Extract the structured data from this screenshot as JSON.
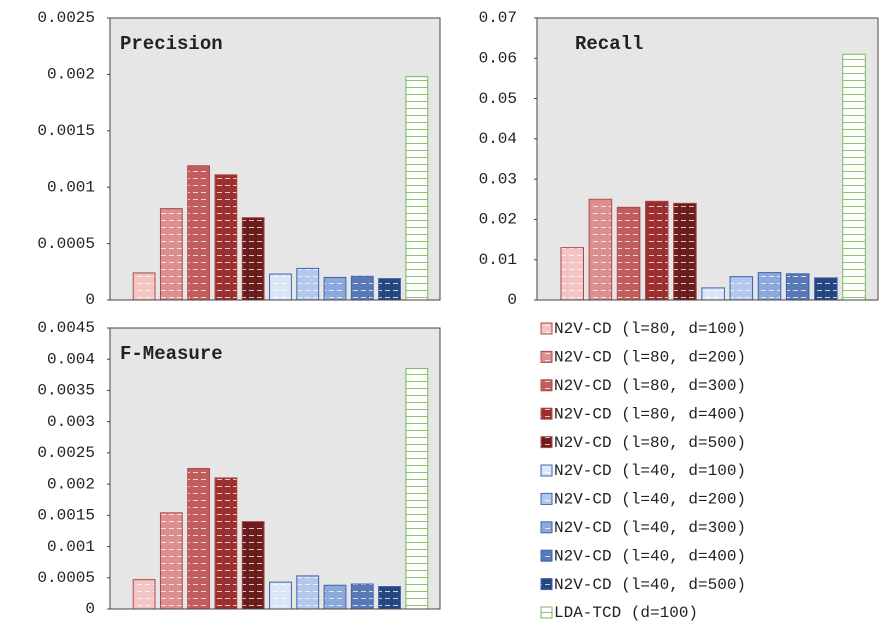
{
  "chart_data": [
    {
      "type": "bar",
      "title": "Precision",
      "values": [
        0.00024,
        0.00081,
        0.00119,
        0.00111,
        0.00073,
        0.00023,
        0.00028,
        0.0002,
        0.00021,
        0.00019,
        0.00198
      ],
      "ylim": [
        0,
        0.0025
      ],
      "yticks": [
        0,
        0.0005,
        0.001,
        0.0015,
        0.002,
        0.0025
      ]
    },
    {
      "type": "bar",
      "title": "Recall",
      "values": [
        0.013,
        0.025,
        0.023,
        0.0245,
        0.024,
        0.003,
        0.0058,
        0.0068,
        0.0065,
        0.0055,
        0.061
      ],
      "ylim": [
        0,
        0.07
      ],
      "yticks": [
        0,
        0.01,
        0.02,
        0.03,
        0.04,
        0.05,
        0.06,
        0.07
      ]
    },
    {
      "type": "bar",
      "title": "F-Measure",
      "values": [
        0.00047,
        0.00154,
        0.00225,
        0.0021,
        0.0014,
        0.00043,
        0.00053,
        0.00038,
        0.0004,
        0.00036,
        0.00385
      ],
      "ylim": [
        0,
        0.0045
      ],
      "yticks": [
        0,
        0.0005,
        0.001,
        0.0015,
        0.002,
        0.0025,
        0.003,
        0.0035,
        0.004,
        0.0045
      ]
    }
  ],
  "legend": [
    {
      "name": "N2V-CD (l=80, d=100)",
      "color": "#f2c4c4"
    },
    {
      "name": "N2V-CD (l=80, d=200)",
      "color": "#dc8f8f"
    },
    {
      "name": "N2V-CD (l=80, d=300)",
      "color": "#c25d5d"
    },
    {
      "name": "N2V-CD (l=80, d=400)",
      "color": "#9b2f2f"
    },
    {
      "name": "N2V-CD (l=80, d=500)",
      "color": "#6b1c1c"
    },
    {
      "name": "N2V-CD (l=40, d=100)",
      "color": "#dbe6f6"
    },
    {
      "name": "N2V-CD (l=40, d=200)",
      "color": "#b3c8ec"
    },
    {
      "name": "N2V-CD (l=40, d=300)",
      "color": "#8da8da"
    },
    {
      "name": "N2V-CD (l=40, d=400)",
      "color": "#5878b6"
    },
    {
      "name": "N2V-CD (l=40, d=500)",
      "color": "#26467f"
    },
    {
      "name": "LDA-TCD (d=100)",
      "color": "#8cc46c"
    }
  ]
}
